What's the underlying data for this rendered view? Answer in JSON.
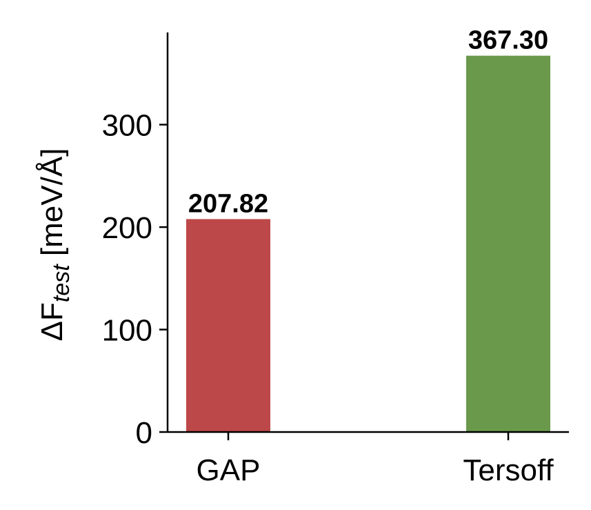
{
  "chart_data": {
    "type": "bar",
    "categories": [
      "GAP",
      "Tersoff"
    ],
    "values": [
      207.82,
      367.3
    ],
    "value_labels": [
      "207.82",
      "367.30"
    ],
    "colors": [
      "#bd4849",
      "#6a994c"
    ],
    "ylabel": {
      "prefix": "ΔF",
      "subscript": "test",
      "unit": " [meV/Å]"
    },
    "xlabel": "",
    "ylim": [
      0,
      390
    ],
    "yticks": [
      0,
      100,
      200,
      300
    ],
    "ytick_labels": [
      "0",
      "100",
      "200",
      "300"
    ],
    "grid": false,
    "legend": "none"
  }
}
